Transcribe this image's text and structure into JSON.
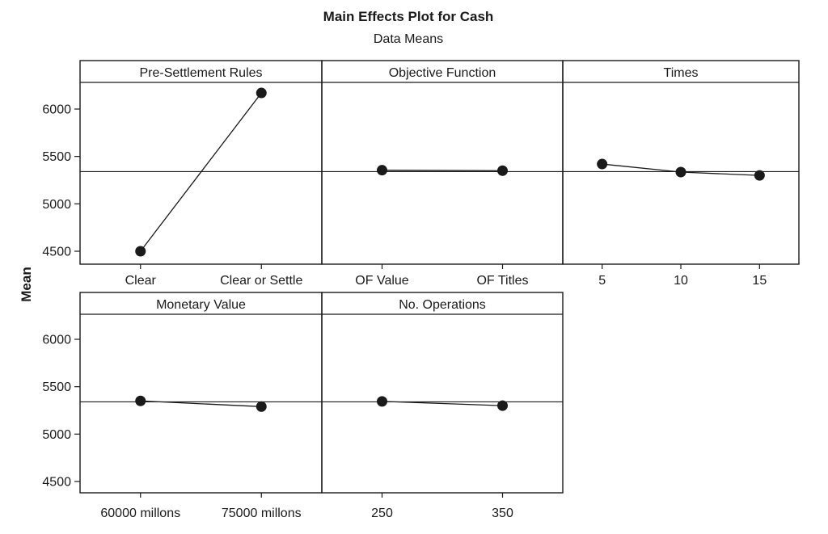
{
  "page": {
    "title": "Main Effects Plot for Cash",
    "subtitle": "Data Means",
    "ylabel": "Mean"
  },
  "colors": {
    "ink": "#1a1a1a",
    "background": "#ffffff"
  },
  "chart_data": {
    "type": "line",
    "variant": "main-effects-plot",
    "title": "Main Effects Plot for Cash",
    "subtitle": "Data Means",
    "ylabel": "Mean",
    "grand_mean": 5340,
    "yticks": [
      4500,
      5000,
      5500,
      6000
    ],
    "ylim": [
      4370,
      6280
    ],
    "grid": false,
    "legend": "none",
    "rows": [
      {
        "panels": [
          {
            "factor": "Pre-Settlement Rules",
            "categories": [
              "Clear",
              "Clear or Settle"
            ],
            "values": [
              4500,
              6170
            ]
          },
          {
            "factor": "Objective Function",
            "categories": [
              "OF Value",
              "OF Titles"
            ],
            "values": [
              5355,
              5350
            ]
          },
          {
            "factor": "Times",
            "categories": [
              "5",
              "10",
              "15"
            ],
            "values": [
              5420,
              5335,
              5300
            ]
          }
        ]
      },
      {
        "panels": [
          {
            "factor": "Monetary Value",
            "categories": [
              "60000 millons",
              "75000 millons"
            ],
            "values": [
              5350,
              5290
            ]
          },
          {
            "factor": "No. Operations",
            "categories": [
              "250",
              "350"
            ],
            "values": [
              5345,
              5300
            ]
          }
        ]
      }
    ]
  }
}
